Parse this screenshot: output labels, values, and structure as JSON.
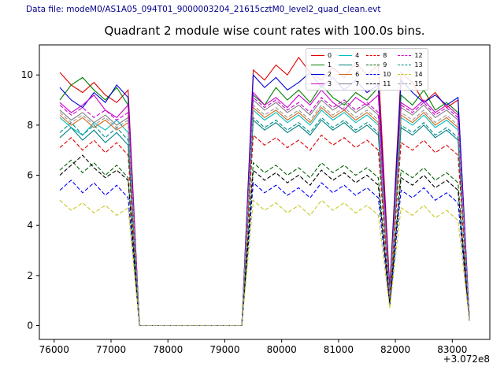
{
  "header": {
    "data_file": "Data file: modeM0/AS1A05_094T01_9000003204_21615cztM0_level2_quad_clean.evt"
  },
  "chart_data": {
    "type": "line",
    "title": "Quadrant 2 module wise count rates with 100.0s bins.",
    "xlabel": "",
    "ylabel": "",
    "x_offset_label": "+3.072e8",
    "bin_seconds": 100.0,
    "grid": false,
    "legend_position": "upper right",
    "legend_columns": 4,
    "xlim": [
      75740,
      83660
    ],
    "ylim": [
      -0.55,
      11.2
    ],
    "x_ticks": [
      76000,
      77000,
      78000,
      79000,
      80000,
      81000,
      82000,
      83000
    ],
    "y_ticks": [
      0,
      2,
      4,
      6,
      8,
      10
    ],
    "x": [
      76100,
      76300,
      76500,
      76700,
      76900,
      77100,
      77300,
      77500,
      77700,
      77900,
      78100,
      78300,
      78500,
      78700,
      78900,
      79100,
      79300,
      79500,
      79700,
      79900,
      80100,
      80300,
      80500,
      80700,
      80900,
      81100,
      81300,
      81500,
      81700,
      81900,
      82100,
      82300,
      82500,
      82700,
      82900,
      83100,
      83300
    ],
    "series": [
      {
        "name": "0",
        "color": "#e00000",
        "style": "solid",
        "values": [
          10.1,
          9.6,
          9.3,
          9.7,
          9.2,
          8.9,
          9.4,
          0,
          0,
          0,
          0,
          0,
          0,
          0,
          0,
          0,
          0,
          10.2,
          9.8,
          10.4,
          10.0,
          10.7,
          10.1,
          9.8,
          10.3,
          9.9,
          10.5,
          10.0,
          10.4,
          1.5,
          10.1,
          9.7,
          8.9,
          9.3,
          8.7,
          9.0,
          0.3
        ]
      },
      {
        "name": "1",
        "color": "#008000",
        "style": "solid",
        "values": [
          9.0,
          9.6,
          9.9,
          9.4,
          9.0,
          9.5,
          8.8,
          0,
          0,
          0,
          0,
          0,
          0,
          0,
          0,
          0,
          0,
          9.2,
          8.8,
          9.5,
          9.0,
          9.4,
          8.9,
          9.6,
          9.1,
          8.8,
          9.3,
          9.0,
          9.5,
          1.3,
          9.2,
          8.8,
          9.4,
          8.6,
          8.9,
          8.5,
          0.3
        ]
      },
      {
        "name": "2",
        "color": "#0000dd",
        "style": "solid",
        "values": [
          9.5,
          9.0,
          8.7,
          9.3,
          8.9,
          9.6,
          9.1,
          0,
          0,
          0,
          0,
          0,
          0,
          0,
          0,
          0,
          0,
          10.0,
          9.5,
          9.9,
          9.4,
          9.7,
          10.1,
          9.5,
          9.9,
          9.4,
          9.8,
          9.3,
          9.6,
          1.4,
          9.8,
          9.3,
          8.9,
          9.2,
          8.8,
          9.1,
          0.3
        ]
      },
      {
        "name": "3",
        "color": "#cc00cc",
        "style": "solid",
        "values": [
          8.9,
          8.5,
          8.8,
          9.2,
          8.6,
          8.3,
          8.8,
          0,
          0,
          0,
          0,
          0,
          0,
          0,
          0,
          0,
          0,
          9.3,
          8.8,
          9.1,
          8.7,
          9.2,
          8.8,
          9.4,
          8.9,
          8.6,
          9.1,
          8.8,
          9.2,
          1.2,
          8.9,
          8.6,
          9.0,
          8.5,
          8.8,
          8.4,
          0.3
        ]
      },
      {
        "name": "4",
        "color": "#00bfbf",
        "style": "solid",
        "values": [
          8.3,
          7.9,
          7.6,
          8.1,
          7.8,
          8.2,
          7.7,
          0,
          0,
          0,
          0,
          0,
          0,
          0,
          0,
          0,
          0,
          8.6,
          8.2,
          8.5,
          8.1,
          8.4,
          8.0,
          8.6,
          8.2,
          8.5,
          8.1,
          8.4,
          8.0,
          1.1,
          8.3,
          8.0,
          8.4,
          7.9,
          8.2,
          7.8,
          0.2
        ]
      },
      {
        "name": "5",
        "color": "#008080",
        "style": "solid",
        "values": [
          7.5,
          7.9,
          7.4,
          7.8,
          7.3,
          7.7,
          7.2,
          0,
          0,
          0,
          0,
          0,
          0,
          0,
          0,
          0,
          0,
          8.2,
          7.8,
          8.1,
          7.7,
          8.0,
          7.6,
          8.2,
          7.8,
          8.1,
          7.7,
          8.0,
          7.6,
          1.0,
          7.9,
          7.6,
          8.0,
          7.5,
          7.8,
          7.4,
          0.2
        ]
      },
      {
        "name": "6",
        "color": "#d2691e",
        "style": "solid",
        "values": [
          8.4,
          8.0,
          8.3,
          7.9,
          8.2,
          7.8,
          8.1,
          0,
          0,
          0,
          0,
          0,
          0,
          0,
          0,
          0,
          0,
          8.7,
          8.3,
          8.6,
          8.2,
          8.5,
          8.1,
          8.7,
          8.3,
          8.6,
          8.2,
          8.5,
          8.1,
          1.1,
          8.4,
          8.1,
          8.5,
          8.0,
          8.3,
          7.9,
          0.2
        ]
      },
      {
        "name": "7",
        "color": "#808080",
        "style": "solid",
        "values": [
          8.6,
          8.2,
          8.5,
          8.1,
          8.4,
          8.0,
          8.3,
          0,
          0,
          0,
          0,
          0,
          0,
          0,
          0,
          0,
          0,
          9.0,
          8.6,
          8.9,
          8.5,
          8.8,
          8.4,
          9.0,
          8.6,
          8.9,
          8.5,
          8.8,
          8.4,
          1.2,
          8.7,
          8.4,
          8.8,
          8.3,
          8.6,
          8.2,
          0.2
        ]
      },
      {
        "name": "8",
        "color": "#e00000",
        "style": "dashed",
        "values": [
          7.1,
          7.5,
          7.0,
          7.4,
          6.9,
          7.3,
          6.8,
          0,
          0,
          0,
          0,
          0,
          0,
          0,
          0,
          0,
          0,
          7.6,
          7.2,
          7.5,
          7.1,
          7.4,
          7.0,
          7.6,
          7.2,
          7.5,
          7.1,
          7.4,
          7.0,
          1.0,
          7.3,
          7.0,
          7.4,
          6.9,
          7.2,
          6.8,
          0.2
        ]
      },
      {
        "name": "9",
        "color": "#006400",
        "style": "dashed",
        "values": [
          6.2,
          6.6,
          6.1,
          6.5,
          6.0,
          6.4,
          5.9,
          0,
          0,
          0,
          0,
          0,
          0,
          0,
          0,
          0,
          0,
          6.5,
          6.1,
          6.4,
          6.0,
          6.3,
          5.9,
          6.5,
          6.1,
          6.4,
          6.0,
          6.3,
          5.9,
          0.9,
          6.2,
          5.9,
          6.3,
          5.8,
          6.1,
          5.7,
          0.2
        ]
      },
      {
        "name": "10",
        "color": "#0000ff",
        "style": "dashed",
        "values": [
          5.4,
          5.8,
          5.3,
          5.7,
          5.2,
          5.6,
          5.1,
          0,
          0,
          0,
          0,
          0,
          0,
          0,
          0,
          0,
          0,
          5.7,
          5.3,
          5.6,
          5.2,
          5.5,
          5.1,
          5.7,
          5.3,
          5.6,
          5.2,
          5.5,
          5.1,
          0.8,
          5.4,
          5.1,
          5.5,
          5.0,
          5.3,
          4.9,
          0.2
        ]
      },
      {
        "name": "11",
        "color": "#000000",
        "style": "dashed",
        "values": [
          6.0,
          6.4,
          6.8,
          6.3,
          5.9,
          6.2,
          5.8,
          0,
          0,
          0,
          0,
          0,
          0,
          0,
          0,
          0,
          0,
          6.2,
          5.8,
          6.1,
          5.7,
          6.0,
          5.6,
          6.2,
          5.8,
          6.1,
          5.7,
          6.0,
          5.6,
          0.9,
          5.9,
          5.6,
          6.0,
          5.5,
          5.8,
          5.4,
          0.2
        ]
      },
      {
        "name": "12",
        "color": "#cc00cc",
        "style": "dashed",
        "values": [
          8.8,
          8.4,
          8.7,
          8.3,
          8.6,
          8.2,
          8.5,
          0,
          0,
          0,
          0,
          0,
          0,
          0,
          0,
          0,
          0,
          9.1,
          8.7,
          9.0,
          8.6,
          8.9,
          8.5,
          9.1,
          8.7,
          9.0,
          8.6,
          8.9,
          8.5,
          1.2,
          8.8,
          8.5,
          8.9,
          8.4,
          8.7,
          8.3,
          0.2
        ]
      },
      {
        "name": "13",
        "color": "#008b8b",
        "style": "dashed",
        "values": [
          7.7,
          8.1,
          7.6,
          8.0,
          7.5,
          7.9,
          7.4,
          0,
          0,
          0,
          0,
          0,
          0,
          0,
          0,
          0,
          0,
          8.3,
          7.9,
          8.2,
          7.8,
          8.1,
          7.7,
          8.3,
          7.9,
          8.2,
          7.8,
          8.1,
          7.7,
          1.1,
          8.0,
          7.7,
          8.1,
          7.6,
          7.9,
          7.5,
          0.2
        ]
      },
      {
        "name": "14",
        "color": "#c8c820",
        "style": "dashed",
        "values": [
          5.0,
          4.6,
          4.9,
          4.5,
          4.8,
          4.4,
          4.7,
          0,
          0,
          0,
          0,
          0,
          0,
          0,
          0,
          0,
          0,
          5.0,
          4.6,
          4.9,
          4.5,
          4.8,
          4.4,
          5.0,
          4.6,
          4.9,
          4.5,
          4.8,
          4.4,
          0.7,
          4.7,
          4.4,
          4.8,
          4.3,
          4.6,
          4.2,
          0.2
        ]
      },
      {
        "name": "15",
        "color": "#999999",
        "style": "dashed",
        "values": [
          8.5,
          8.1,
          8.4,
          8.0,
          8.3,
          7.9,
          8.2,
          0,
          0,
          0,
          0,
          0,
          0,
          0,
          0,
          0,
          0,
          8.8,
          8.4,
          8.7,
          8.3,
          8.6,
          8.2,
          8.8,
          8.4,
          8.7,
          8.3,
          8.6,
          8.2,
          1.1,
          8.5,
          8.2,
          8.6,
          8.1,
          8.4,
          8.0,
          0.2
        ]
      }
    ]
  }
}
